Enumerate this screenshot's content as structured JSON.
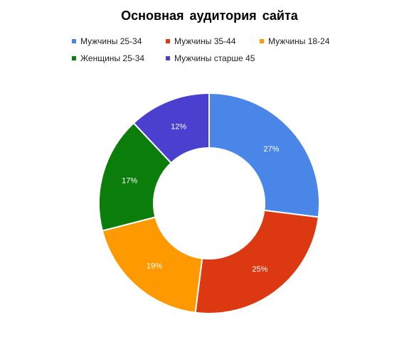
{
  "chart_data": {
    "type": "pie",
    "donut": true,
    "title": "Основная  аудитория сайта",
    "categories": [
      "Мужчины 25-34",
      "Мужчины 35-44",
      "Мужчины 18-24",
      "Женщины 25-34",
      "Мужчины старше 45"
    ],
    "values": [
      27,
      25,
      19,
      17,
      12
    ],
    "value_labels": [
      "27%",
      "25%",
      "19%",
      "17%",
      "12%"
    ],
    "colors": [
      "#4a86e8",
      "#dc3912",
      "#ff9900",
      "#0b7d0b",
      "#4b3fcf"
    ],
    "legend_position": "top"
  }
}
